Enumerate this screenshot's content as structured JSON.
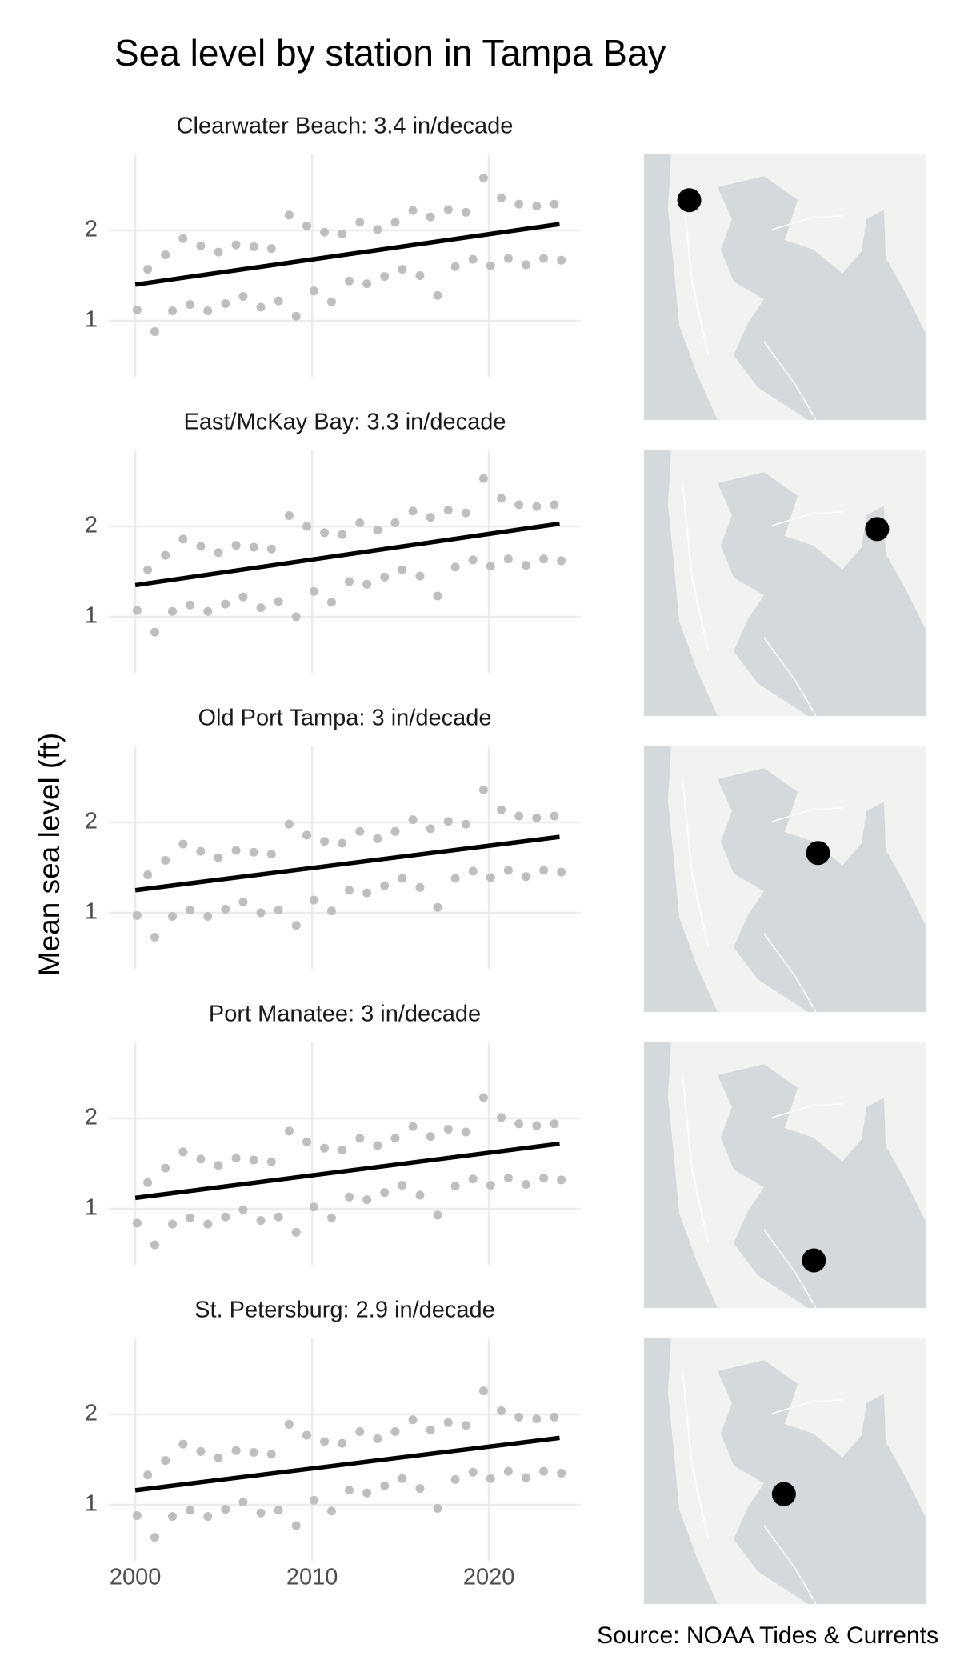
{
  "chart_data": {
    "type": "scatter",
    "title": "Sea level by station in Tampa Bay",
    "y_label": "Mean sea level (ft)",
    "source": "Source: NOAA Tides & Currents",
    "point_color": "#bebebe",
    "line_color": "#000000",
    "dot_color": "#000000",
    "grid": true,
    "xlim": [
      1998.5,
      2025.2
    ],
    "xticks": [
      2000,
      2010,
      2020
    ],
    "ylim": [
      0.38,
      2.85
    ],
    "yticks": [
      1,
      2
    ],
    "map_lonlim": [
      -82.93,
      -82.32
    ],
    "map_latlim": [
      27.544,
      28.07
    ],
    "x": [
      2000.1,
      2000.7,
      2001.1,
      2001.7,
      2002.1,
      2002.7,
      2003.1,
      2003.7,
      2004.1,
      2004.7,
      2005.1,
      2005.7,
      2006.1,
      2006.7,
      2007.1,
      2007.7,
      2008.1,
      2008.7,
      2009.1,
      2009.7,
      2010.1,
      2010.7,
      2011.1,
      2011.7,
      2012.1,
      2012.7,
      2013.1,
      2013.7,
      2014.1,
      2014.7,
      2015.1,
      2015.7,
      2016.1,
      2016.7,
      2017.1,
      2017.7,
      2018.1,
      2018.7,
      2019.1,
      2019.7,
      2020.1,
      2020.7,
      2021.1,
      2021.7,
      2022.1,
      2022.7,
      2023.1,
      2023.7,
      2024.1
    ],
    "panels": [
      {
        "title": "Clearwater Beach: 3.4 in/decade",
        "lon": -82.832,
        "lat": 27.978,
        "values": [
          1.12,
          1.57,
          0.88,
          1.73,
          1.11,
          1.91,
          1.18,
          1.83,
          1.11,
          1.76,
          1.19,
          1.84,
          1.27,
          1.82,
          1.15,
          1.8,
          1.22,
          2.17,
          1.05,
          2.05,
          1.33,
          1.98,
          1.21,
          1.96,
          1.44,
          2.09,
          1.41,
          2.01,
          1.49,
          2.09,
          1.57,
          2.22,
          1.5,
          2.15,
          1.28,
          2.23,
          1.6,
          2.2,
          1.68,
          2.58,
          1.61,
          2.36,
          1.69,
          2.29,
          1.62,
          2.27,
          1.69,
          2.29,
          1.67
        ],
        "trend": {
          "x": [
            2000,
            2024
          ],
          "values": [
            1.4,
            2.07
          ]
        }
      },
      {
        "title": "East/McKay Bay: 3.3 in/decade",
        "lon": -82.425,
        "lat": 27.913,
        "values": [
          1.07,
          1.52,
          0.83,
          1.68,
          1.06,
          1.86,
          1.13,
          1.78,
          1.06,
          1.71,
          1.14,
          1.79,
          1.22,
          1.77,
          1.1,
          1.75,
          1.17,
          2.12,
          1.0,
          2.0,
          1.28,
          1.93,
          1.16,
          1.91,
          1.39,
          2.04,
          1.36,
          1.96,
          1.44,
          2.04,
          1.52,
          2.17,
          1.45,
          2.1,
          1.23,
          2.18,
          1.55,
          2.15,
          1.63,
          2.53,
          1.56,
          2.31,
          1.64,
          2.24,
          1.57,
          2.22,
          1.64,
          2.24,
          1.62
        ],
        "trend": {
          "x": [
            2000,
            2024
          ],
          "values": [
            1.35,
            2.03
          ]
        }
      },
      {
        "title": "Old Port Tampa: 3 in/decade",
        "lon": -82.553,
        "lat": 27.858,
        "values": [
          0.97,
          1.42,
          0.73,
          1.58,
          0.96,
          1.76,
          1.03,
          1.68,
          0.96,
          1.61,
          1.04,
          1.69,
          1.12,
          1.67,
          1.0,
          1.65,
          1.03,
          1.98,
          0.86,
          1.86,
          1.14,
          1.79,
          1.02,
          1.77,
          1.25,
          1.9,
          1.22,
          1.82,
          1.3,
          1.9,
          1.38,
          2.03,
          1.28,
          1.93,
          1.06,
          2.01,
          1.38,
          1.98,
          1.46,
          2.36,
          1.39,
          2.14,
          1.47,
          2.07,
          1.4,
          2.05,
          1.47,
          2.07,
          1.45
        ],
        "trend": {
          "x": [
            2000,
            2024
          ],
          "values": [
            1.25,
            1.84
          ]
        }
      },
      {
        "title": "Port Manatee: 3 in/decade",
        "lon": -82.562,
        "lat": 27.638,
        "values": [
          0.84,
          1.29,
          0.6,
          1.45,
          0.83,
          1.63,
          0.9,
          1.55,
          0.83,
          1.48,
          0.91,
          1.56,
          0.99,
          1.54,
          0.87,
          1.52,
          0.91,
          1.86,
          0.74,
          1.74,
          1.02,
          1.67,
          0.9,
          1.65,
          1.13,
          1.78,
          1.1,
          1.7,
          1.18,
          1.78,
          1.26,
          1.91,
          1.15,
          1.8,
          0.93,
          1.88,
          1.25,
          1.85,
          1.33,
          2.23,
          1.26,
          2.01,
          1.34,
          1.94,
          1.27,
          1.92,
          1.34,
          1.94,
          1.32
        ],
        "trend": {
          "x": [
            2000,
            2024
          ],
          "values": [
            1.12,
            1.72
          ]
        }
      },
      {
        "title": "St. Petersburg: 2.9 in/decade",
        "lon": -82.627,
        "lat": 27.761,
        "values": [
          0.88,
          1.33,
          0.64,
          1.49,
          0.87,
          1.67,
          0.94,
          1.59,
          0.87,
          1.52,
          0.95,
          1.6,
          1.03,
          1.58,
          0.91,
          1.56,
          0.94,
          1.89,
          0.77,
          1.77,
          1.05,
          1.7,
          0.93,
          1.68,
          1.16,
          1.81,
          1.13,
          1.73,
          1.21,
          1.81,
          1.29,
          1.94,
          1.18,
          1.83,
          0.96,
          1.91,
          1.28,
          1.88,
          1.36,
          2.26,
          1.29,
          2.04,
          1.37,
          1.97,
          1.3,
          1.95,
          1.37,
          1.97,
          1.35
        ],
        "trend": {
          "x": [
            2000,
            2024
          ],
          "values": [
            1.16,
            1.74
          ]
        }
      }
    ]
  }
}
